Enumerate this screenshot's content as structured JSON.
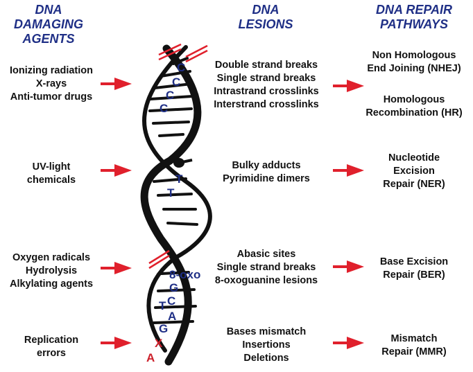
{
  "headers": {
    "agents": [
      "DNA DAMAGING",
      "AGENTS"
    ],
    "lesions": [
      "DNA",
      "LESIONS"
    ],
    "pathways": [
      "DNA REPAIR",
      "PATHWAYS"
    ]
  },
  "rows": [
    {
      "agents": [
        "Ionizing radiation",
        "X-rays",
        "Anti-tumor drugs"
      ],
      "lesions": [
        "Double strand breaks",
        "Single strand breaks",
        "Intrastrand crosslinks",
        "Interstrand crosslinks"
      ],
      "pathways": [
        [
          "Non Homologous",
          "End Joining (NHEJ)"
        ],
        [
          "Homologous",
          "Recombination (HR)"
        ]
      ]
    },
    {
      "agents": [
        "UV-light",
        "chemicals"
      ],
      "lesions": [
        "Bulky adducts",
        "Pyrimidine dimers"
      ],
      "pathways": [
        [
          "Nucleotide",
          "Excision",
          "Repair (NER)"
        ]
      ]
    },
    {
      "agents": [
        "Oxygen radicals",
        "Hydrolysis",
        "Alkylating agents"
      ],
      "lesions": [
        "Abasic sites",
        "Single strand breaks",
        "8-oxoguanine lesions"
      ],
      "pathways": [
        [
          "Base Excision",
          "Repair (BER)"
        ]
      ]
    },
    {
      "agents": [
        "Replication",
        "errors"
      ],
      "lesions": [
        "Bases mismatch",
        "Insertions",
        "Deletions"
      ],
      "pathways": [
        [
          "Mismatch",
          "Repair (MMR)"
        ]
      ]
    }
  ],
  "helix_labels": {
    "ccc": [
      "C",
      "C",
      "C",
      "C"
    ],
    "tt": [
      "T",
      "T"
    ],
    "oxo": [
      "8-oxo",
      "G"
    ],
    "tcag": [
      "T",
      "C",
      "A",
      "G"
    ],
    "mismatch": [
      "X",
      "A"
    ]
  },
  "colors": {
    "header": "#1f2f86",
    "arrow": "#e0202c",
    "strand": "#111111",
    "base_text": "#1f2f86",
    "mismatch_text": "#cc1f2a"
  }
}
